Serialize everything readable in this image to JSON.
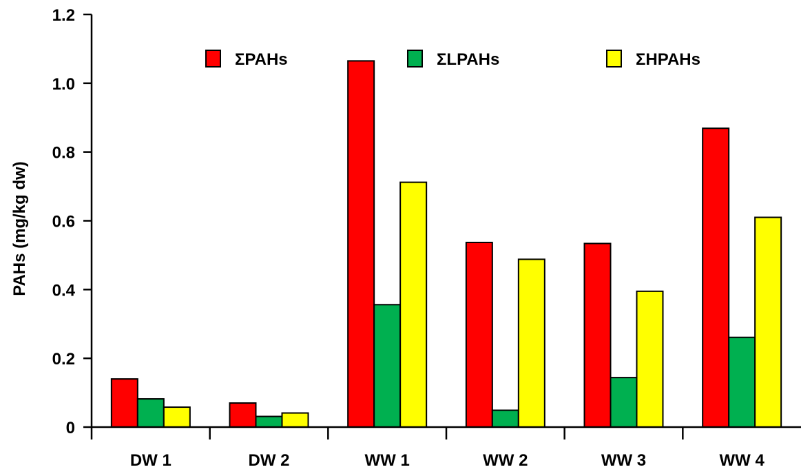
{
  "chart_data": {
    "type": "bar",
    "title": "",
    "xlabel": "",
    "ylabel": "PAHs (mg/kg dw)",
    "ylim": [
      0,
      1.2
    ],
    "yticks": [
      "0",
      "0.2",
      "0.4",
      "0.6",
      "0.8",
      "1.0",
      "1.2"
    ],
    "categories": [
      "DW 1",
      "DW 2",
      "WW 1",
      "WW 2",
      "WW 3",
      "WW 4"
    ],
    "series": [
      {
        "name": "ΣPAHs",
        "color": "#ff0000",
        "values": [
          0.14,
          0.07,
          1.065,
          0.537,
          0.534,
          0.869
        ]
      },
      {
        "name": "ΣLPAHs",
        "color": "#00b050",
        "values": [
          0.082,
          0.031,
          0.356,
          0.049,
          0.144,
          0.261
        ]
      },
      {
        "name": "ΣHPAHs",
        "color": "#ffff00",
        "values": [
          0.058,
          0.041,
          0.712,
          0.488,
          0.395,
          0.61
        ]
      }
    ],
    "grid": false,
    "legend_position": "top"
  }
}
